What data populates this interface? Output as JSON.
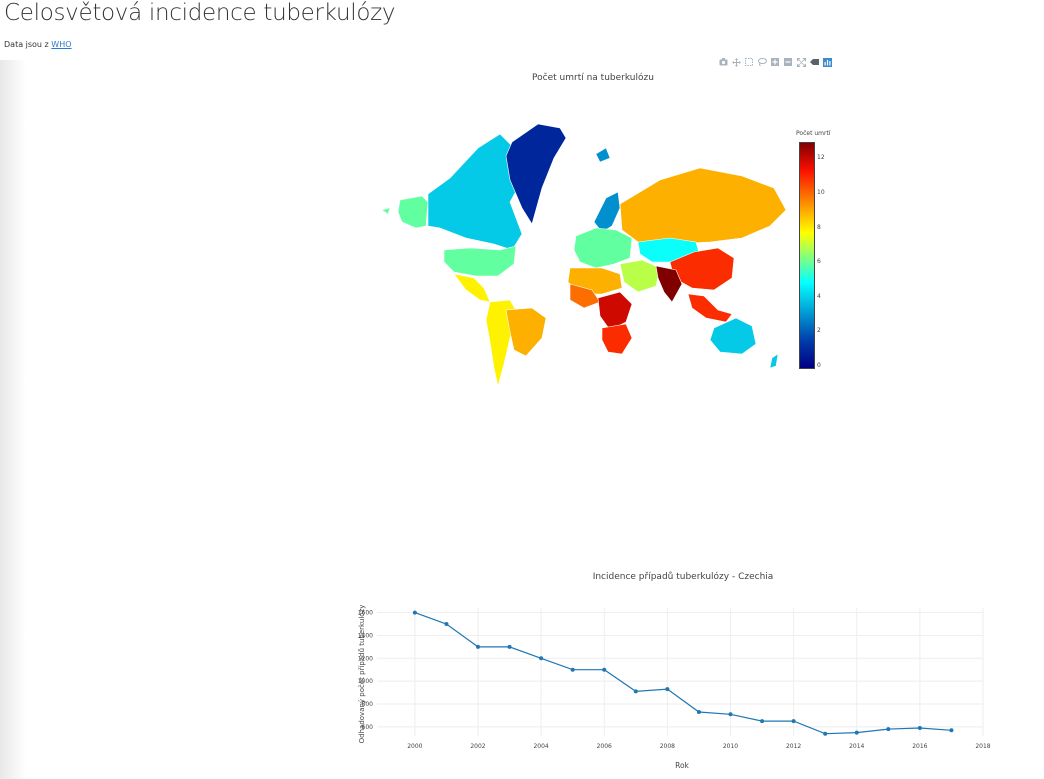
{
  "page": {
    "title": "Celosvětová incidence tuberkulózy",
    "source_prefix": "Data jsou z ",
    "source_link": "WHO"
  },
  "modebar": {
    "icons": [
      "camera-icon",
      "pan-icon",
      "box-select-icon",
      "lasso-select-icon",
      "zoom-in-icon",
      "zoom-out-icon",
      "autoscale-icon",
      "reset-icon",
      "plotly-logo-icon"
    ]
  },
  "map_chart": {
    "title": "Počet umrtí na tuberkulózu",
    "colorbar_title": "Počet umrtí",
    "colorbar_ticks": [
      "0",
      "2",
      "4",
      "6",
      "8",
      "10",
      "12"
    ],
    "colorbar_range": [
      0,
      13
    ],
    "colorscale": [
      "#000083",
      "#003caa",
      "#05ffff",
      "#ffff00",
      "#fa0f00",
      "#800000"
    ],
    "regions": [
      {
        "name": "Greenland",
        "value": 1
      },
      {
        "name": "Canada",
        "value": 4
      },
      {
        "name": "Alaska",
        "value": 6
      },
      {
        "name": "USA",
        "value": 6
      },
      {
        "name": "Mexico",
        "value": 8
      },
      {
        "name": "South America",
        "value": 8
      },
      {
        "name": "Brazil",
        "value": 9
      },
      {
        "name": "Europe",
        "value": 6
      },
      {
        "name": "Scandinavia",
        "value": 3
      },
      {
        "name": "Russia",
        "value": 9
      },
      {
        "name": "Central Asia",
        "value": 5
      },
      {
        "name": "China",
        "value": 11
      },
      {
        "name": "India",
        "value": 13
      },
      {
        "name": "Middle East",
        "value": 7
      },
      {
        "name": "North Africa",
        "value": 9
      },
      {
        "name": "West Africa",
        "value": 10
      },
      {
        "name": "Central Africa",
        "value": 12
      },
      {
        "name": "Southern Africa",
        "value": 11
      },
      {
        "name": "Southeast Asia",
        "value": 11
      },
      {
        "name": "Australia",
        "value": 4
      }
    ]
  },
  "chart_data": {
    "type": "line",
    "title": "Incidence případů tuberkulózy - Czechia",
    "xlabel": "Rok",
    "ylabel": "Odhadovaný počet případů tuberkulózy",
    "x": [
      2000,
      2001,
      2002,
      2003,
      2004,
      2005,
      2006,
      2007,
      2008,
      2009,
      2010,
      2011,
      2012,
      2013,
      2014,
      2015,
      2016,
      2017
    ],
    "y": [
      1600,
      1500,
      1300,
      1300,
      1200,
      1100,
      1100,
      910,
      930,
      730,
      710,
      650,
      650,
      540,
      550,
      580,
      590,
      570
    ],
    "xlim": [
      1998.8,
      2018
    ],
    "ylim": [
      520,
      1640
    ],
    "xticks": [
      "2000",
      "2002",
      "2004",
      "2006",
      "2008",
      "2010",
      "2012",
      "2014",
      "2016",
      "2018"
    ],
    "yticks": [
      "600",
      "800",
      "1000",
      "1200",
      "1400",
      "1600"
    ],
    "line_color": "#1f77b4",
    "grid": true
  }
}
